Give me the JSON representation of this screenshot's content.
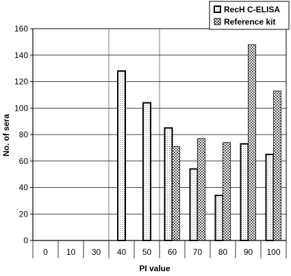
{
  "chart_data": {
    "type": "bar",
    "categories": [
      "0",
      "10",
      "30",
      "40",
      "50",
      "60",
      "70",
      "80",
      "90",
      "100"
    ],
    "series": [
      {
        "name": "RecH C-ELISA",
        "values": [
          0,
          0,
          0,
          128,
          104,
          85,
          54,
          34,
          73,
          65
        ]
      },
      {
        "name": "Reference kit",
        "values": [
          0,
          0,
          0,
          0,
          0,
          71,
          77,
          74,
          148,
          113
        ]
      }
    ],
    "xlabel": "PI value",
    "ylabel": "No. of sera",
    "ylim": [
      0,
      160
    ],
    "yticks": [
      0,
      20,
      40,
      60,
      80,
      100,
      120,
      140,
      160
    ],
    "grid": "horizontal major gridlines plus vertical reference lines at categories 30 and 40",
    "legend": "top-right"
  }
}
